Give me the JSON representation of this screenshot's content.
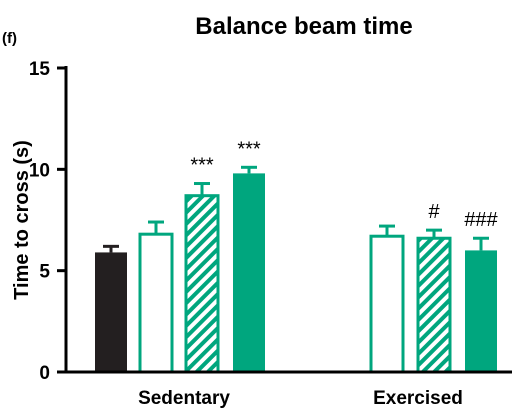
{
  "chart_data": {
    "type": "bar",
    "title": "Balance beam time",
    "panel_label": "(f)",
    "xlabel": "",
    "ylabel": "Time to cross (s)",
    "ylim": [
      0,
      15
    ],
    "yticks": [
      0,
      5,
      10,
      15
    ],
    "categories": [
      "Sedentary",
      "Exercised"
    ],
    "colors": {
      "black": "#231f20",
      "green": "#00a67e",
      "white": "#ffffff",
      "axis": "#000000"
    },
    "groups": [
      {
        "category": "Sedentary",
        "bars": [
          {
            "value": 5.9,
            "error": 0.3,
            "style": "solid-black",
            "annotation": ""
          },
          {
            "value": 6.8,
            "error": 0.6,
            "style": "open-green",
            "annotation": ""
          },
          {
            "value": 8.7,
            "error": 0.6,
            "style": "hatched-green",
            "annotation": "***"
          },
          {
            "value": 9.8,
            "error": 0.3,
            "style": "solid-green",
            "annotation": "***"
          }
        ]
      },
      {
        "category": "Exercised",
        "bars": [
          {
            "value": 6.7,
            "error": 0.5,
            "style": "open-green",
            "annotation": ""
          },
          {
            "value": 6.6,
            "error": 0.4,
            "style": "hatched-green",
            "annotation": "#"
          },
          {
            "value": 6.0,
            "error": 0.6,
            "style": "solid-green",
            "annotation": "###"
          }
        ]
      }
    ]
  }
}
